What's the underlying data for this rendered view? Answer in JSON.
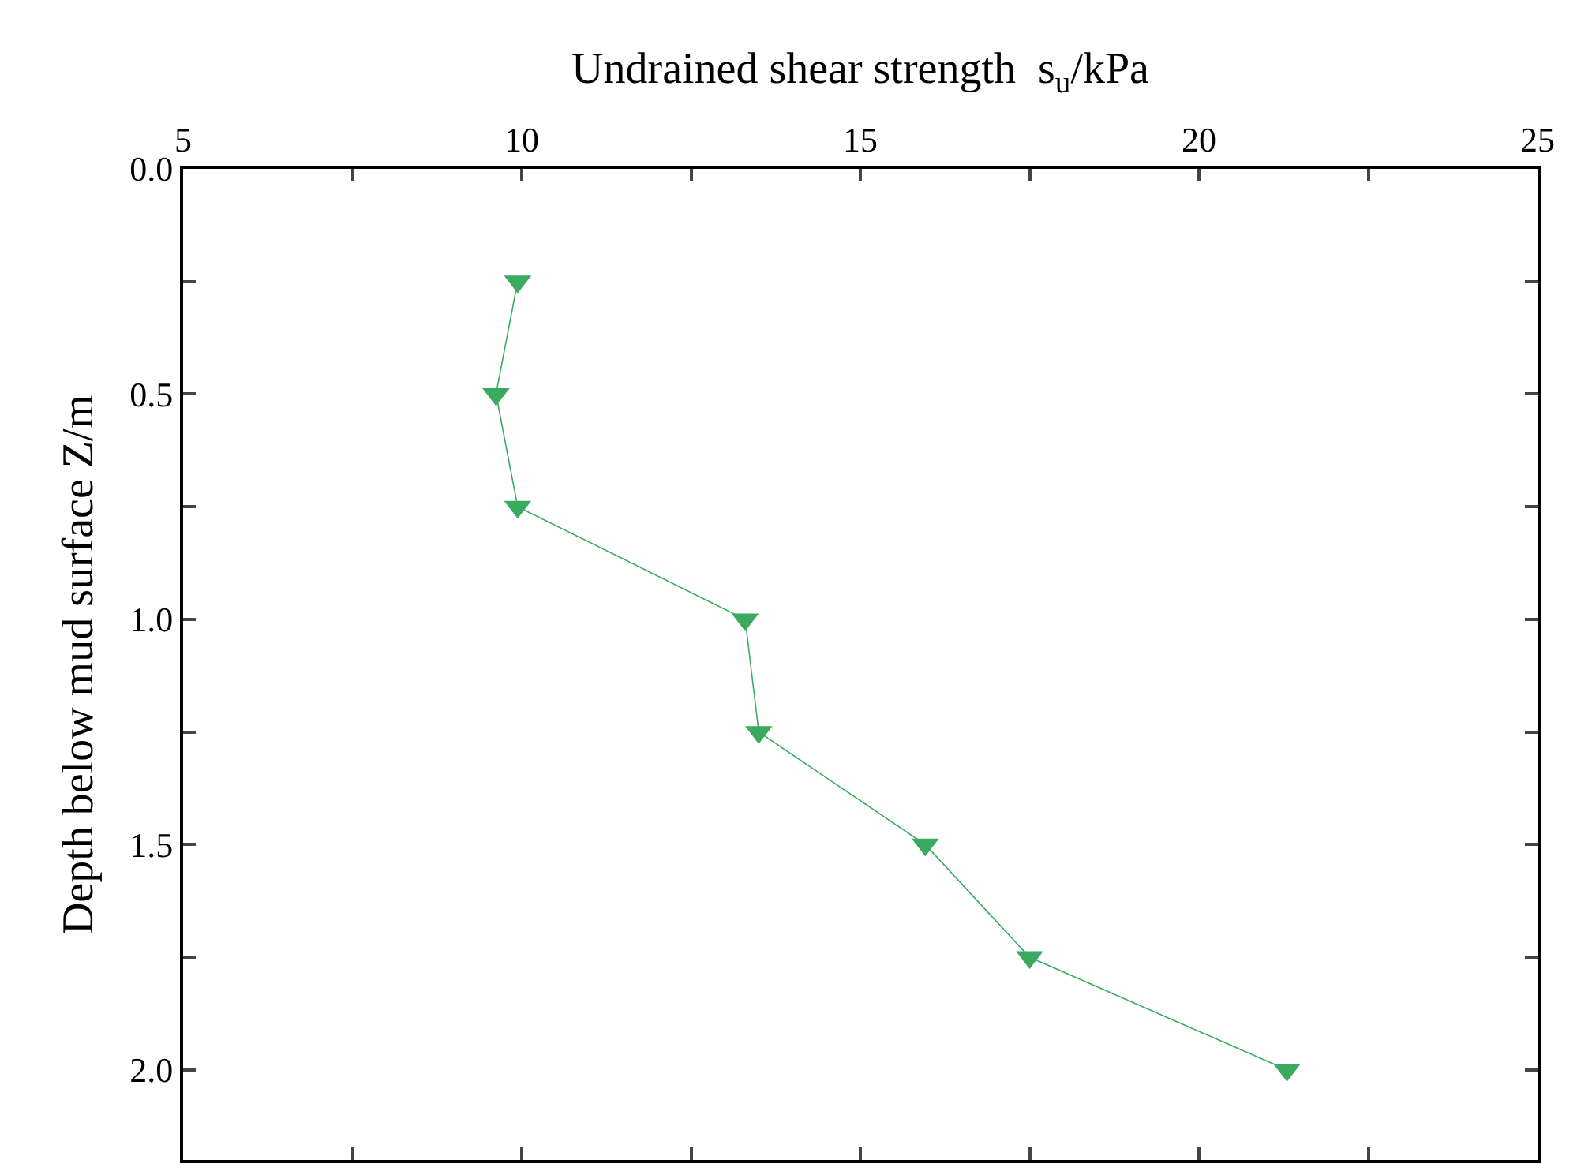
{
  "chart_data": {
    "type": "line",
    "xlabel": "Undrained shear strength  s$_{u}$/kPa",
    "ylabel": "Depth below mud surface Z/m",
    "x": [
      9.94,
      9.62,
      9.94,
      13.3,
      13.5,
      15.96,
      17.5,
      21.3
    ],
    "series": [
      {
        "color": "#3aaa5f",
        "values": [
          0.25,
          0.5,
          0.75,
          1.0,
          1.25,
          1.5,
          1.75,
          2.0
        ]
      }
    ],
    "xlim": [
      5,
      25
    ],
    "xticks": [
      5,
      {
        "value": 7.5,
        "label": null
      },
      10,
      {
        "value": 12.5,
        "label": null
      },
      15,
      {
        "value": 17.5,
        "label": null
      },
      20,
      {
        "value": 22.5,
        "label": null
      },
      25
    ],
    "ylim": [
      2.2,
      0
    ],
    "yticks": [
      {
        "value": 0,
        "label": "0.0"
      },
      {
        "value": 0.25,
        "label": null
      },
      {
        "value": 0.5,
        "label": "0.5"
      },
      {
        "value": 0.75,
        "label": null
      },
      {
        "value": 1.0,
        "label": "1.0"
      },
      {
        "value": 1.25,
        "label": null
      },
      {
        "value": 1.5,
        "label": "1.5"
      },
      {
        "value": 1.75,
        "label": null
      },
      {
        "value": 2.0,
        "label": "2.0"
      }
    ],
    "marker": "triangle",
    "line_style": "solid"
  }
}
